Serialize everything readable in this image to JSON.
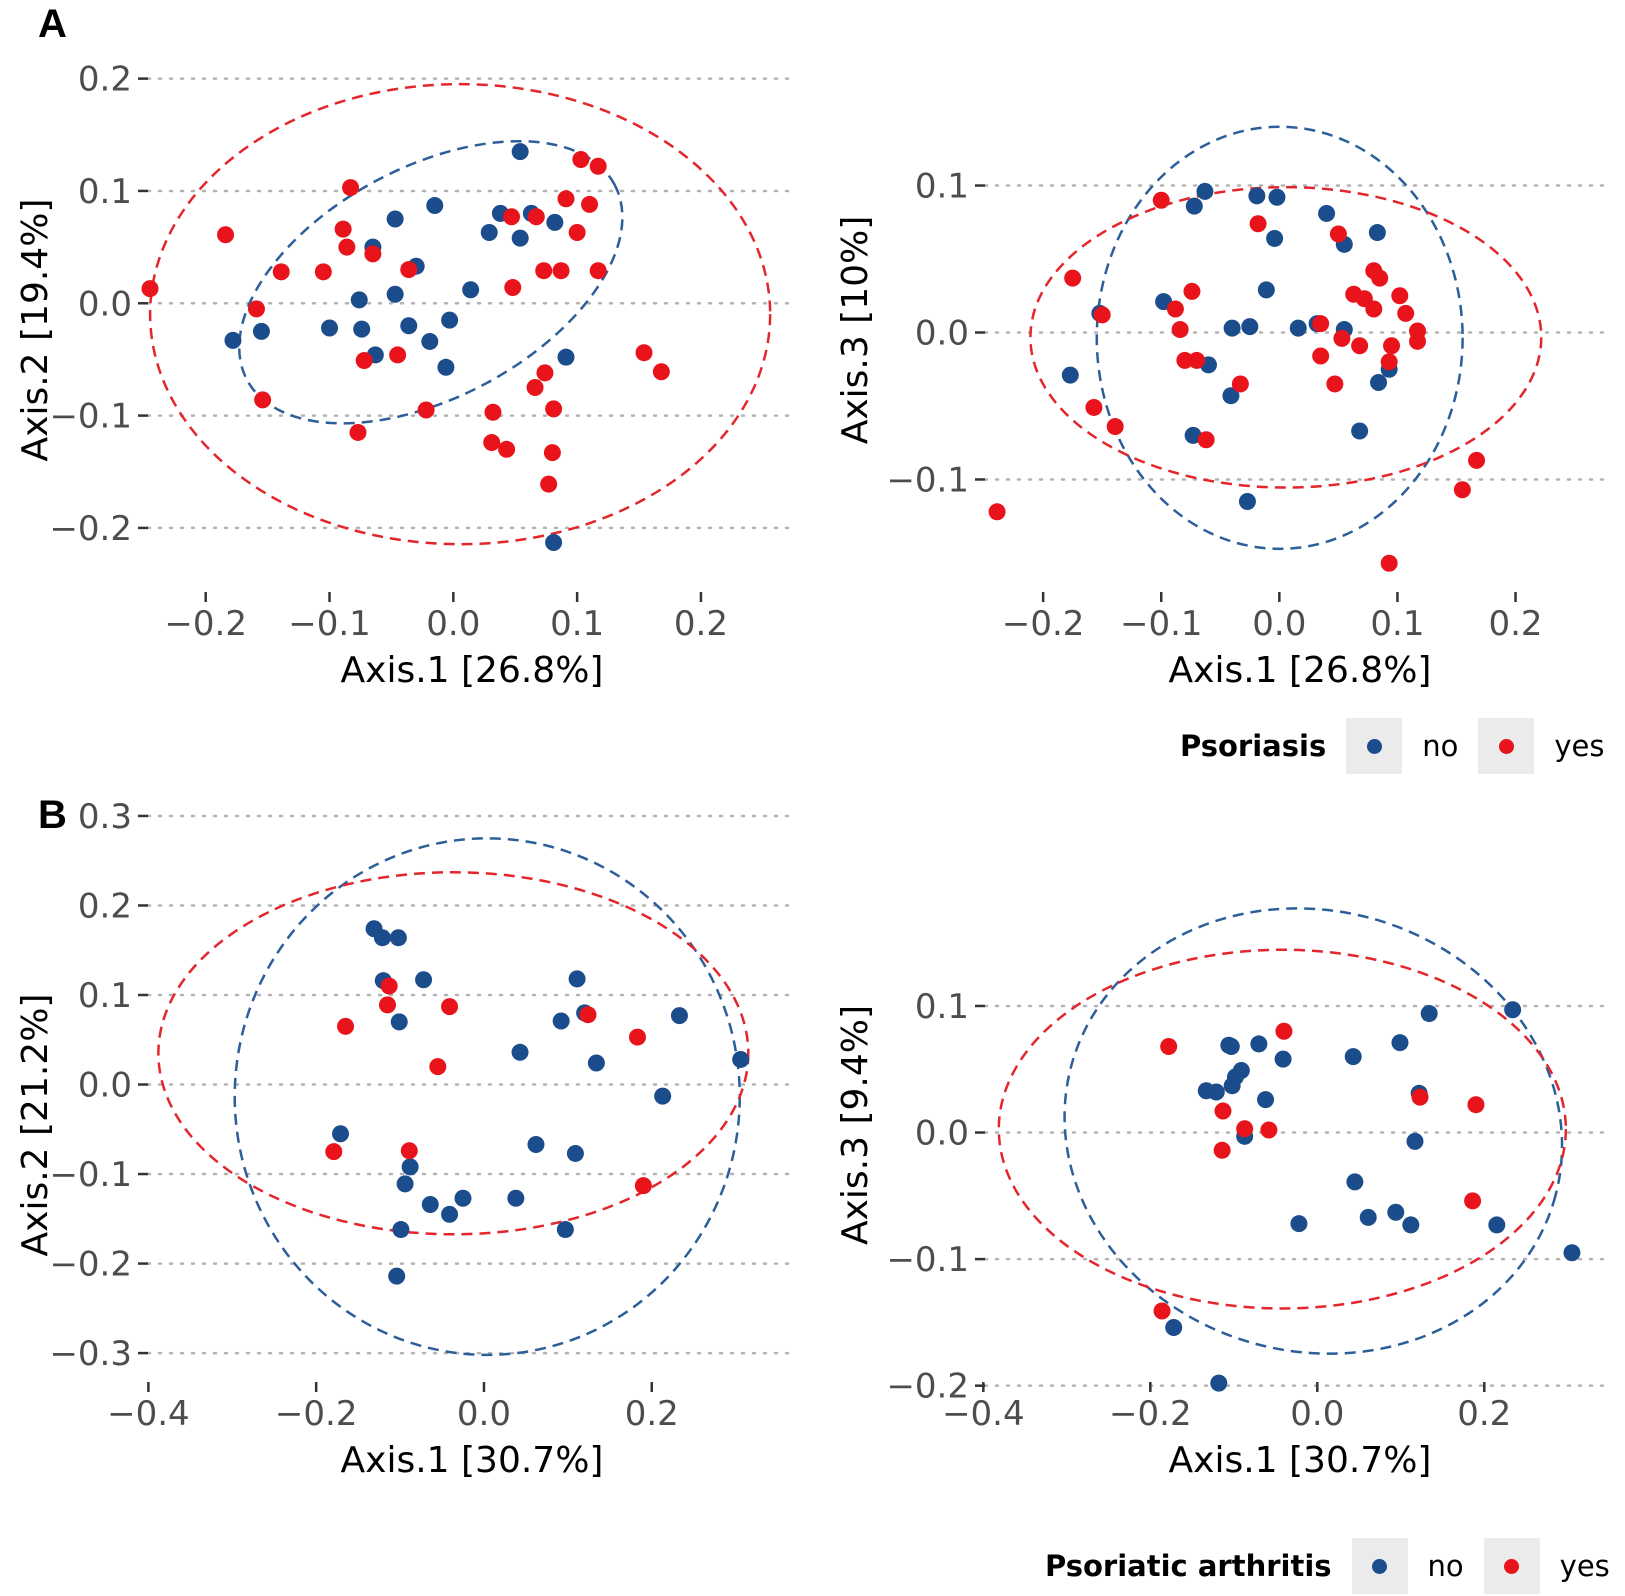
{
  "colors": {
    "no": "#1b4c8b",
    "yes": "#e9141b",
    "no_ellipse": "#2c5f9a",
    "yes_ellipse": "#e3262b",
    "grid": "#b3b3b3",
    "tick_text": "#4d4d4d",
    "legend_key_bg": "#ebebeb"
  },
  "panel_labels": {
    "a": "A",
    "b": "B"
  },
  "legend_a": {
    "title": "Psoriasis",
    "items": [
      {
        "label": "no",
        "color": "#1b4c8b"
      },
      {
        "label": "yes",
        "color": "#e9141b"
      }
    ]
  },
  "legend_b": {
    "title": "Psoriatic arthritis",
    "items": [
      {
        "label": "no",
        "color": "#1b4c8b"
      },
      {
        "label": "yes",
        "color": "#e9141b"
      }
    ]
  },
  "chart_data": [
    {
      "id": "A_left",
      "type": "scatter",
      "panel": "A",
      "xlabel": "Axis.1   [26.8%]",
      "ylabel": "Axis.2   [19.4%]",
      "xlim": [
        -0.245,
        0.28
      ],
      "ylim": [
        -0.225,
        0.205
      ],
      "xticks": [
        -0.2,
        -0.1,
        0.0,
        0.1,
        0.2
      ],
      "xtick_labels": [
        "−0.2",
        "−0.1",
        "0.0",
        "0.1",
        "0.2"
      ],
      "yticks": [
        -0.2,
        -0.1,
        0.0,
        0.1,
        0.2
      ],
      "ytick_labels": [
        "−0.2",
        "−0.1",
        "0.0",
        "0.1",
        "0.2"
      ],
      "grid": "horizontal dotted",
      "series": [
        {
          "name": "no",
          "color": "#1b4c8b",
          "points": [
            [
              0.054,
              0.135
            ],
            [
              -0.015,
              0.087
            ],
            [
              -0.047,
              0.075
            ],
            [
              0.038,
              0.08
            ],
            [
              0.063,
              0.08
            ],
            [
              0.082,
              0.072
            ],
            [
              0.029,
              0.063
            ],
            [
              0.054,
              0.058
            ],
            [
              -0.065,
              0.05
            ],
            [
              -0.03,
              0.033
            ],
            [
              0.014,
              0.012
            ],
            [
              -0.047,
              0.008
            ],
            [
              -0.076,
              0.003
            ],
            [
              -0.1,
              -0.022
            ],
            [
              -0.003,
              -0.015
            ],
            [
              -0.155,
              -0.025
            ],
            [
              -0.036,
              -0.02
            ],
            [
              -0.074,
              -0.023
            ],
            [
              -0.178,
              -0.033
            ],
            [
              -0.019,
              -0.034
            ],
            [
              -0.063,
              -0.046
            ],
            [
              -0.006,
              -0.057
            ],
            [
              0.091,
              -0.048
            ],
            [
              0.081,
              -0.213
            ]
          ]
        },
        {
          "name": "yes",
          "color": "#e9141b",
          "points": [
            [
              0.103,
              0.128
            ],
            [
              0.117,
              0.122
            ],
            [
              0.091,
              0.093
            ],
            [
              0.11,
              0.088
            ],
            [
              -0.083,
              0.103
            ],
            [
              0.1,
              0.063
            ],
            [
              -0.184,
              0.061
            ],
            [
              -0.089,
              0.066
            ],
            [
              0.047,
              0.077
            ],
            [
              0.067,
              0.077
            ],
            [
              -0.086,
              0.05
            ],
            [
              -0.065,
              0.044
            ],
            [
              -0.139,
              0.028
            ],
            [
              -0.105,
              0.028
            ],
            [
              0.073,
              0.029
            ],
            [
              0.087,
              0.029
            ],
            [
              0.117,
              0.029
            ],
            [
              -0.036,
              0.03
            ],
            [
              -0.245,
              0.013
            ],
            [
              0.048,
              0.014
            ],
            [
              -0.159,
              -0.005
            ],
            [
              0.154,
              -0.044
            ],
            [
              0.168,
              -0.061
            ],
            [
              -0.072,
              -0.051
            ],
            [
              -0.045,
              -0.046
            ],
            [
              0.074,
              -0.062
            ],
            [
              0.066,
              -0.075
            ],
            [
              -0.022,
              -0.095
            ],
            [
              0.032,
              -0.097
            ],
            [
              0.081,
              -0.094
            ],
            [
              -0.077,
              -0.115
            ],
            [
              0.031,
              -0.124
            ],
            [
              0.043,
              -0.13
            ],
            [
              0.08,
              -0.133
            ],
            [
              0.077,
              -0.161
            ],
            [
              -0.154,
              -0.086
            ]
          ]
        }
      ],
      "ellipses": [
        {
          "group": "no",
          "cx": -0.0182,
          "cy": 0.0187,
          "rx": 0.1681,
          "ry": 0.1026,
          "angle_deg": 28
        },
        {
          "group": "yes",
          "cx": 0.0055,
          "cy": -0.0097,
          "rx": 0.2504,
          "ry": 0.2048,
          "angle_deg": 0
        }
      ]
    },
    {
      "id": "A_right",
      "type": "scatter",
      "panel": "A",
      "xlabel": "Axis.1   [26.8%]",
      "ylabel": "Axis.3   [10%]",
      "xlim": [
        -0.245,
        0.28
      ],
      "ylim": [
        -0.165,
        0.165
      ],
      "xticks": [
        -0.2,
        -0.1,
        0.0,
        0.1,
        0.2
      ],
      "xtick_labels": [
        "−0.2",
        "−0.1",
        "0.0",
        "0.1",
        "0.2"
      ],
      "yticks": [
        -0.1,
        0.0,
        0.1
      ],
      "ytick_labels": [
        "−0.1",
        "0.0",
        "0.1"
      ],
      "grid": "horizontal dotted",
      "series": [
        {
          "name": "no",
          "color": "#1b4c8b",
          "points": [
            [
              -0.063,
              0.096
            ],
            [
              -0.072,
              0.086
            ],
            [
              -0.019,
              0.093
            ],
            [
              -0.002,
              0.092
            ],
            [
              0.04,
              0.081
            ],
            [
              0.083,
              0.068
            ],
            [
              0.055,
              0.06
            ],
            [
              -0.004,
              0.064
            ],
            [
              -0.011,
              0.029
            ],
            [
              -0.098,
              0.021
            ],
            [
              -0.152,
              0.013
            ],
            [
              -0.04,
              0.003
            ],
            [
              -0.025,
              0.004
            ],
            [
              0.016,
              0.003
            ],
            [
              0.032,
              0.006
            ],
            [
              0.055,
              0.002
            ],
            [
              -0.06,
              -0.022
            ],
            [
              0.093,
              -0.025
            ],
            [
              0.084,
              -0.034
            ],
            [
              -0.177,
              -0.029
            ],
            [
              -0.041,
              -0.043
            ],
            [
              -0.073,
              -0.07
            ],
            [
              0.068,
              -0.067
            ],
            [
              -0.027,
              -0.115
            ]
          ]
        },
        {
          "name": "yes",
          "color": "#e9141b",
          "points": [
            [
              -0.1,
              0.09
            ],
            [
              -0.018,
              0.074
            ],
            [
              0.05,
              0.067
            ],
            [
              -0.175,
              0.037
            ],
            [
              0.08,
              0.042
            ],
            [
              0.085,
              0.037
            ],
            [
              -0.074,
              0.028
            ],
            [
              0.063,
              0.026
            ],
            [
              0.102,
              0.025
            ],
            [
              0.08,
              0.016
            ],
            [
              0.072,
              0.023
            ],
            [
              0.107,
              0.013
            ],
            [
              -0.15,
              0.012
            ],
            [
              0.035,
              0.006
            ],
            [
              -0.088,
              0.016
            ],
            [
              -0.084,
              0.002
            ],
            [
              0.117,
              0.001
            ],
            [
              0.053,
              -0.004
            ],
            [
              0.117,
              -0.006
            ],
            [
              0.095,
              -0.009
            ],
            [
              0.068,
              -0.009
            ],
            [
              0.035,
              -0.016
            ],
            [
              -0.08,
              -0.019
            ],
            [
              -0.07,
              -0.019
            ],
            [
              0.093,
              -0.02
            ],
            [
              0.047,
              -0.035
            ],
            [
              -0.033,
              -0.035
            ],
            [
              -0.157,
              -0.051
            ],
            [
              -0.139,
              -0.064
            ],
            [
              -0.062,
              -0.073
            ],
            [
              0.167,
              -0.087
            ],
            [
              0.155,
              -0.107
            ],
            [
              -0.239,
              -0.122
            ],
            [
              0.093,
              -0.157
            ]
          ]
        }
      ],
      "ellipses": [
        {
          "group": "no",
          "cx": 0.0003,
          "cy": -0.0036,
          "rx": 0.1549,
          "ry": 0.1436,
          "angle_deg": 0
        },
        {
          "group": "yes",
          "cx": 0.0055,
          "cy": -0.0033,
          "rx": 0.2163,
          "ry": 0.1022,
          "angle_deg": 0
        }
      ]
    },
    {
      "id": "B_left",
      "type": "scatter",
      "panel": "B",
      "xlabel": "Axis.1   [30.7%]",
      "ylabel": "Axis.2   [21.2%]",
      "xlim": [
        -0.41,
        0.335
      ],
      "ylim": [
        -0.32,
        0.31
      ],
      "xticks": [
        -0.4,
        -0.2,
        0.0,
        0.2
      ],
      "xtick_labels": [
        "−0.4",
        "−0.2",
        "0.0",
        "0.2"
      ],
      "yticks": [
        -0.3,
        -0.2,
        -0.1,
        0.0,
        0.1,
        0.2,
        0.3
      ],
      "ytick_labels": [
        "−0.3",
        "−0.2",
        "−0.1",
        "0.0",
        "0.1",
        "0.2",
        "0.3"
      ],
      "grid": "horizontal dotted",
      "series": [
        {
          "name": "no",
          "color": "#1b4c8b",
          "points": [
            [
              -0.131,
              0.174
            ],
            [
              -0.121,
              0.164
            ],
            [
              -0.102,
              0.164
            ],
            [
              -0.12,
              0.116
            ],
            [
              -0.072,
              0.117
            ],
            [
              -0.101,
              0.07
            ],
            [
              0.111,
              0.118
            ],
            [
              0.092,
              0.071
            ],
            [
              0.12,
              0.08
            ],
            [
              0.233,
              0.077
            ],
            [
              0.043,
              0.036
            ],
            [
              0.134,
              0.024
            ],
            [
              0.306,
              0.028
            ],
            [
              0.213,
              -0.013
            ],
            [
              -0.171,
              -0.055
            ],
            [
              0.062,
              -0.067
            ],
            [
              0.109,
              -0.077
            ],
            [
              -0.088,
              -0.092
            ],
            [
              -0.094,
              -0.111
            ],
            [
              -0.064,
              -0.134
            ],
            [
              -0.025,
              -0.127
            ],
            [
              -0.041,
              -0.145
            ],
            [
              0.038,
              -0.127
            ],
            [
              -0.099,
              -0.162
            ],
            [
              0.097,
              -0.162
            ],
            [
              -0.104,
              -0.214
            ]
          ]
        },
        {
          "name": "yes",
          "color": "#e9141b",
          "points": [
            [
              -0.113,
              0.11
            ],
            [
              -0.115,
              0.089
            ],
            [
              -0.041,
              0.087
            ],
            [
              -0.165,
              0.065
            ],
            [
              0.124,
              0.078
            ],
            [
              0.183,
              0.053
            ],
            [
              -0.055,
              0.02
            ],
            [
              -0.179,
              -0.075
            ],
            [
              -0.089,
              -0.074
            ],
            [
              0.19,
              -0.113
            ]
          ]
        }
      ],
      "ellipses": [
        {
          "group": "no",
          "cx": 0.0039,
          "cy": -0.0135,
          "rx": 0.301,
          "ry": 0.2885,
          "angle_deg": 0
        },
        {
          "group": "yes",
          "cx": -0.0365,
          "cy": 0.0349,
          "rx": 0.3516,
          "ry": 0.2022,
          "angle_deg": 0
        }
      ]
    },
    {
      "id": "B_right",
      "type": "scatter",
      "panel": "B",
      "xlabel": "Axis.1   [30.7%]",
      "ylabel": "Axis.3   [9.4%]",
      "xlim": [
        -0.41,
        0.335
      ],
      "ylim": [
        -0.22,
        0.145
      ],
      "xticks": [
        -0.4,
        -0.2,
        0.0,
        0.2
      ],
      "xtick_labels": [
        "−0.4",
        "−0.2",
        "0.0",
        "0.2"
      ],
      "yticks": [
        -0.2,
        -0.1,
        0.0,
        0.1
      ],
      "ytick_labels": [
        "−0.2",
        "−0.1",
        "0.0",
        "0.1"
      ],
      "grid": "horizontal dotted",
      "series": [
        {
          "name": "no",
          "color": "#1b4c8b",
          "points": [
            [
              0.234,
              0.097
            ],
            [
              0.134,
              0.094
            ],
            [
              -0.07,
              0.07
            ],
            [
              0.099,
              0.071
            ],
            [
              -0.106,
              0.069
            ],
            [
              -0.103,
              0.068
            ],
            [
              0.043,
              0.06
            ],
            [
              -0.041,
              0.058
            ],
            [
              -0.091,
              0.049
            ],
            [
              -0.098,
              0.044
            ],
            [
              -0.102,
              0.037
            ],
            [
              -0.133,
              0.033
            ],
            [
              -0.121,
              0.032
            ],
            [
              0.122,
              0.031
            ],
            [
              -0.062,
              0.026
            ],
            [
              -0.087,
              -0.003
            ],
            [
              0.117,
              -0.007
            ],
            [
              0.045,
              -0.039
            ],
            [
              0.061,
              -0.067
            ],
            [
              0.094,
              -0.063
            ],
            [
              -0.022,
              -0.072
            ],
            [
              0.112,
              -0.073
            ],
            [
              0.215,
              -0.073
            ],
            [
              0.305,
              -0.095
            ],
            [
              -0.172,
              -0.154
            ],
            [
              -0.118,
              -0.198
            ]
          ]
        },
        {
          "name": "yes",
          "color": "#e9141b",
          "points": [
            [
              -0.178,
              0.068
            ],
            [
              -0.04,
              0.08
            ],
            [
              0.123,
              0.028
            ],
            [
              0.19,
              0.022
            ],
            [
              -0.113,
              0.017
            ],
            [
              -0.087,
              0.003
            ],
            [
              -0.058,
              0.002
            ],
            [
              -0.114,
              -0.014
            ],
            [
              0.186,
              -0.054
            ],
            [
              -0.186,
              -0.141
            ]
          ]
        }
      ],
      "ellipses": [
        {
          "group": "no",
          "cx": -0.0048,
          "cy": 0.0012,
          "rx": 0.3002,
          "ry": 0.1742,
          "angle_deg": -15
        },
        {
          "group": "yes",
          "cx": -0.0419,
          "cy": 0.0027,
          "rx": 0.3396,
          "ry": 0.1417,
          "angle_deg": 0
        }
      ]
    }
  ]
}
